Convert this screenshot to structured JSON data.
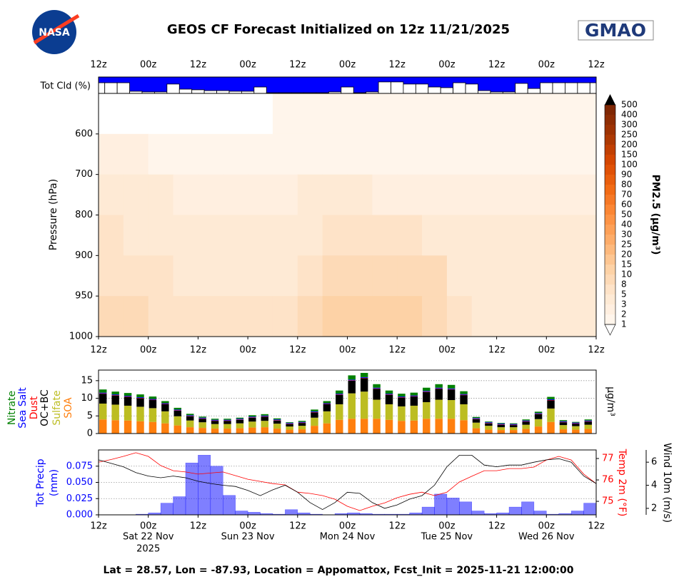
{
  "header": {
    "title": "GEOS CF Forecast Initialized on 12z 11/21/2025",
    "logo_left": "NASA",
    "logo_right": "GMAO"
  },
  "chart_data": [
    {
      "type": "bar",
      "ylabel": "Tot Cld (%)",
      "color": "#ffffff",
      "background": "#0000ff",
      "x": [
        0,
        3,
        6,
        9,
        12,
        15,
        18,
        21,
        24,
        27,
        30,
        33,
        36,
        39,
        42,
        45,
        48,
        51,
        54,
        57,
        60,
        63,
        66,
        69,
        72,
        75,
        78,
        81,
        84,
        87,
        90,
        93,
        96,
        99,
        102,
        105,
        108,
        111,
        114,
        117,
        120
      ],
      "values": [
        65,
        65,
        65,
        13,
        9,
        9,
        57,
        26,
        22,
        17,
        17,
        13,
        13,
        39,
        4,
        4,
        4,
        4,
        4,
        9,
        39,
        4,
        9,
        70,
        70,
        57,
        57,
        39,
        35,
        65,
        57,
        17,
        9,
        9,
        61,
        30,
        65,
        65,
        65,
        65,
        65
      ],
      "ylim": [
        0,
        100
      ],
      "xlim": [
        0,
        120
      ],
      "xticks": [
        {
          "value": 0,
          "label": "12z"
        },
        {
          "value": 12,
          "label": "00z"
        },
        {
          "value": 24,
          "label": "12z"
        },
        {
          "value": 36,
          "label": "00z"
        },
        {
          "value": 48,
          "label": "12z"
        },
        {
          "value": 60,
          "label": "00z"
        },
        {
          "value": 72,
          "label": "12z"
        },
        {
          "value": 84,
          "label": "00z"
        },
        {
          "value": 96,
          "label": "12z"
        },
        {
          "value": 108,
          "label": "00z"
        },
        {
          "value": 120,
          "label": "12z"
        }
      ]
    },
    {
      "type": "contour",
      "ylabel": "Pressure (hPa)",
      "x_edges": [
        0,
        6,
        12,
        18,
        24,
        30,
        36,
        42,
        48,
        54,
        60,
        66,
        72,
        78,
        84,
        90,
        96,
        102,
        108,
        114,
        120
      ],
      "y_edges": [
        500,
        600,
        700,
        800,
        900,
        950,
        1000
      ],
      "values": [
        [
          0.5,
          0.5,
          0.5,
          0.5,
          0.5,
          0.5,
          0.5,
          1,
          1,
          1,
          1,
          1,
          1,
          1,
          1,
          1,
          1,
          1,
          1,
          1
        ],
        [
          2,
          2,
          1.5,
          1,
          1,
          1,
          1,
          1.5,
          1,
          1,
          1,
          1,
          1,
          1,
          1,
          1.5,
          1,
          1,
          1,
          1
        ],
        [
          4,
          4,
          3,
          2,
          2,
          2,
          2,
          2,
          3,
          3,
          3,
          2,
          2,
          2,
          2,
          2,
          2,
          2,
          2,
          2
        ],
        [
          5,
          4,
          4,
          3,
          3,
          3,
          3,
          3,
          4,
          5,
          5,
          5,
          5,
          4,
          3,
          3,
          3,
          3,
          3,
          3
        ],
        [
          6,
          6,
          5,
          4,
          4,
          4,
          4,
          4,
          7,
          9,
          9,
          9,
          9,
          8,
          4,
          3,
          3,
          4,
          3,
          3
        ],
        [
          8,
          8,
          7,
          5,
          5,
          5,
          5,
          6,
          9,
          10,
          10,
          10,
          10,
          9,
          5,
          4,
          4,
          4,
          4,
          4
        ]
      ],
      "ylim": [
        1000,
        500
      ],
      "yticks": [
        600,
        700,
        800,
        900,
        950,
        1000
      ],
      "xlim": [
        0,
        120
      ],
      "xticks": [
        {
          "value": 0,
          "label": "12z"
        },
        {
          "value": 12,
          "label": "00z"
        },
        {
          "value": 24,
          "label": "12z"
        },
        {
          "value": 36,
          "label": "00z"
        },
        {
          "value": 48,
          "label": "12z"
        },
        {
          "value": 60,
          "label": "00z"
        },
        {
          "value": 72,
          "label": "12z"
        },
        {
          "value": 84,
          "label": "00z"
        },
        {
          "value": 96,
          "label": "12z"
        },
        {
          "value": 108,
          "label": "00z"
        },
        {
          "value": 120,
          "label": "12z"
        }
      ],
      "colorbar": {
        "label": "PM2.5 (μg/m³)",
        "levels": [
          1,
          2,
          3,
          5,
          8,
          10,
          15,
          20,
          25,
          30,
          40,
          50,
          60,
          70,
          80,
          90,
          100,
          150,
          200,
          250,
          300,
          400,
          500
        ],
        "colormap": [
          "#fff5eb",
          "#fee6ce",
          "#fdd0a2",
          "#fdae6b",
          "#fd8d3c",
          "#f16913",
          "#d94801",
          "#a63603",
          "#7f2704"
        ],
        "under_color": "#ffffff",
        "over_color": "#000000"
      }
    },
    {
      "type": "stacked_bar",
      "ylabel": "μg/m³",
      "grid": true,
      "xlim": [
        0,
        120
      ],
      "ylim": [
        0,
        18
      ],
      "yticks": [
        0,
        5,
        10,
        15
      ],
      "x": [
        0,
        3,
        6,
        9,
        12,
        15,
        18,
        21,
        24,
        27,
        30,
        33,
        36,
        39,
        42,
        45,
        48,
        51,
        54,
        57,
        60,
        63,
        66,
        69,
        72,
        75,
        78,
        81,
        84,
        87,
        90,
        93,
        96,
        99,
        102,
        105,
        108,
        111,
        114,
        117
      ],
      "series": [
        {
          "name": "SOA",
          "color": "#ff7f0e",
          "values": [
            4.0,
            3.8,
            3.7,
            3.5,
            3.3,
            2.9,
            2.3,
            1.8,
            1.6,
            1.4,
            1.4,
            1.5,
            1.7,
            1.8,
            1.4,
            1.1,
            1.2,
            2.2,
            2.9,
            3.9,
            4.2,
            4.2,
            4.2,
            3.9,
            3.6,
            3.7,
            4.2,
            4.2,
            4.2,
            3.8,
            1.5,
            1.1,
            1.0,
            1.0,
            1.3,
            2.0,
            3.3,
            1.2,
            1.1,
            1.3
          ]
        },
        {
          "name": "Sulfate",
          "color": "#bcbd22",
          "values": [
            4.5,
            4.4,
            4.2,
            4.1,
            3.9,
            3.4,
            2.6,
            1.9,
            1.6,
            1.3,
            1.3,
            1.4,
            1.7,
            1.8,
            1.4,
            0.9,
            1.0,
            2.3,
            3.4,
            4.4,
            7.2,
            7.7,
            5.4,
            4.4,
            4.1,
            4.2,
            4.7,
            5.4,
            5.3,
            4.5,
            1.6,
            1.1,
            0.8,
            0.8,
            1.2,
            2.1,
            3.8,
            1.2,
            1.0,
            1.2
          ]
        },
        {
          "name": "OC+BC",
          "color": "#000000",
          "values": [
            2.8,
            2.6,
            2.5,
            2.4,
            2.3,
            2.0,
            1.6,
            1.2,
            1.0,
            0.9,
            0.9,
            1.0,
            1.1,
            1.2,
            0.9,
            0.7,
            0.8,
            1.5,
            2.0,
            2.7,
            3.6,
            3.8,
            3.1,
            2.7,
            2.5,
            2.6,
            2.9,
            3.1,
            3.0,
            2.6,
            1.0,
            0.7,
            0.7,
            0.6,
            0.9,
            1.4,
            2.3,
            0.8,
            0.7,
            0.9
          ]
        },
        {
          "name": "Dust",
          "color": "#ff0000",
          "values": [
            0.1,
            0.1,
            0.1,
            0.1,
            0.1,
            0.1,
            0.1,
            0.1,
            0.1,
            0.1,
            0.1,
            0.1,
            0.1,
            0.1,
            0.1,
            0.1,
            0.1,
            0.1,
            0.1,
            0.1,
            0.1,
            0.1,
            0.1,
            0.1,
            0.1,
            0.1,
            0.1,
            0.1,
            0.1,
            0.1,
            0.1,
            0.1,
            0.1,
            0.1,
            0.1,
            0.1,
            0.1,
            0.1,
            0.1,
            0.1
          ]
        },
        {
          "name": "Sea Salt",
          "color": "#0000ff",
          "values": [
            0.2,
            0.2,
            0.2,
            0.2,
            0.2,
            0.2,
            0.2,
            0.2,
            0.2,
            0.2,
            0.2,
            0.2,
            0.2,
            0.2,
            0.2,
            0.2,
            0.2,
            0.2,
            0.2,
            0.2,
            0.2,
            0.2,
            0.2,
            0.2,
            0.2,
            0.2,
            0.2,
            0.2,
            0.2,
            0.2,
            0.2,
            0.2,
            0.2,
            0.2,
            0.2,
            0.2,
            0.2,
            0.2,
            0.2,
            0.2
          ]
        },
        {
          "name": "Nitrate",
          "color": "#008000",
          "values": [
            0.9,
            0.8,
            0.8,
            0.8,
            0.7,
            0.6,
            0.5,
            0.4,
            0.3,
            0.3,
            0.3,
            0.3,
            0.4,
            0.4,
            0.3,
            0.2,
            0.3,
            0.5,
            0.6,
            0.9,
            1.2,
            1.2,
            1.0,
            0.9,
            0.8,
            0.8,
            0.9,
            1.0,
            1.0,
            0.8,
            0.3,
            0.2,
            0.2,
            0.2,
            0.3,
            0.4,
            0.7,
            0.3,
            0.2,
            0.3
          ]
        }
      ]
    },
    {
      "type": "combo",
      "grid": true,
      "xlim": [
        0,
        120
      ],
      "xticks": [
        {
          "value": 0,
          "label": "12z"
        },
        {
          "value": 12,
          "label": "00z"
        },
        {
          "value": 24,
          "label": "12z"
        },
        {
          "value": 36,
          "label": "00z"
        },
        {
          "value": 48,
          "label": "12z"
        },
        {
          "value": 60,
          "label": "00z"
        },
        {
          "value": 72,
          "label": "12z"
        },
        {
          "value": 84,
          "label": "00z"
        },
        {
          "value": 96,
          "label": "12z"
        },
        {
          "value": 108,
          "label": "00z"
        },
        {
          "value": 120,
          "label": "12z"
        }
      ],
      "date_labels": [
        {
          "value": 12,
          "label": "Sat 22 Nov"
        },
        {
          "value": 36,
          "label": "Sun 23 Nov"
        },
        {
          "value": 60,
          "label": "Mon 24 Nov"
        },
        {
          "value": 84,
          "label": "Tue 25 Nov"
        },
        {
          "value": 108,
          "label": "Wed 26 Nov"
        }
      ],
      "year_label": "2025",
      "ylabel": [
        "Tot Precip",
        "(mm)"
      ],
      "y2label": "Temp 2m (°F)",
      "y3label": "Wind 10m (m/s)",
      "ylim": [
        0,
        0.1
      ],
      "yticks": [
        {
          "value": 0,
          "label": "0.000"
        },
        {
          "value": 0.025,
          "label": "0.025"
        },
        {
          "value": 0.05,
          "label": "0.050"
        },
        {
          "value": 0.075,
          "label": "0.075"
        }
      ],
      "y2lim": [
        74.37,
        77.4
      ],
      "y2ticks": [
        75,
        76,
        77
      ],
      "y3lim": [
        1.44,
        7.06
      ],
      "y3ticks": [
        2,
        4,
        6
      ],
      "series": [
        {
          "type": "bar",
          "axis": "y",
          "color": "#0000ff",
          "x": [
            0,
            3,
            6,
            9,
            12,
            15,
            18,
            21,
            24,
            27,
            30,
            33,
            36,
            39,
            42,
            45,
            48,
            51,
            54,
            57,
            60,
            63,
            66,
            69,
            72,
            75,
            78,
            81,
            84,
            87,
            90,
            93,
            96,
            99,
            102,
            105,
            108,
            111,
            114,
            117
          ],
          "values": [
            0,
            0,
            0,
            0.001,
            0.003,
            0.018,
            0.028,
            0.08,
            0.092,
            0.075,
            0.03,
            0.006,
            0.004,
            0.002,
            0.001,
            0.008,
            0.003,
            0.001,
            0,
            0.002,
            0.003,
            0.002,
            0.001,
            0.001,
            0.001,
            0.003,
            0.012,
            0.032,
            0.026,
            0.02,
            0.006,
            0.002,
            0.003,
            0.012,
            0.02,
            0.006,
            0.001,
            0.002,
            0.006,
            0.018
          ]
        },
        {
          "type": "line",
          "axis": "y2",
          "color": "#ff0000",
          "x": [
            0,
            3,
            6,
            9,
            12,
            15,
            18,
            21,
            24,
            27,
            30,
            33,
            36,
            39,
            42,
            45,
            48,
            51,
            54,
            57,
            60,
            63,
            66,
            69,
            72,
            75,
            78,
            81,
            84,
            87,
            90,
            93,
            96,
            99,
            102,
            105,
            108,
            111,
            114,
            117,
            120
          ],
          "values": [
            76.83,
            76.95,
            77.1,
            77.27,
            77.1,
            76.67,
            76.43,
            76.37,
            76.27,
            76.32,
            76.37,
            76.2,
            76.03,
            75.93,
            75.83,
            75.77,
            75.43,
            75.37,
            75.27,
            75.1,
            74.77,
            74.57,
            74.77,
            74.93,
            75.17,
            75.33,
            75.43,
            75.27,
            75.43,
            75.9,
            76.17,
            76.43,
            76.43,
            76.53,
            76.53,
            76.6,
            76.93,
            77.1,
            76.93,
            76.27,
            75.83
          ]
        },
        {
          "type": "line",
          "axis": "y3",
          "color": "#000000",
          "x": [
            0,
            3,
            6,
            9,
            12,
            15,
            18,
            21,
            24,
            27,
            30,
            33,
            36,
            39,
            42,
            45,
            48,
            51,
            54,
            57,
            60,
            63,
            66,
            69,
            72,
            75,
            78,
            81,
            84,
            87,
            90,
            93,
            96,
            99,
            102,
            105,
            108,
            111,
            114,
            117,
            120
          ],
          "values": [
            6.2,
            5.9,
            5.6,
            5.1,
            4.8,
            4.65,
            4.8,
            4.65,
            4.35,
            4.15,
            4.0,
            3.9,
            3.55,
            3.1,
            3.6,
            4.0,
            3.4,
            2.5,
            1.9,
            2.5,
            3.4,
            3.3,
            2.5,
            2.0,
            2.3,
            2.8,
            3.1,
            4.0,
            5.6,
            6.6,
            6.6,
            5.75,
            5.6,
            5.75,
            5.75,
            6.0,
            6.2,
            6.3,
            6.0,
            4.8,
            4.15
          ]
        }
      ]
    }
  ],
  "footer": "Lat = 28.57, Lon = -87.93, Location = Appomattox, Fcst_Init = 2025-11-21 12:00:00"
}
